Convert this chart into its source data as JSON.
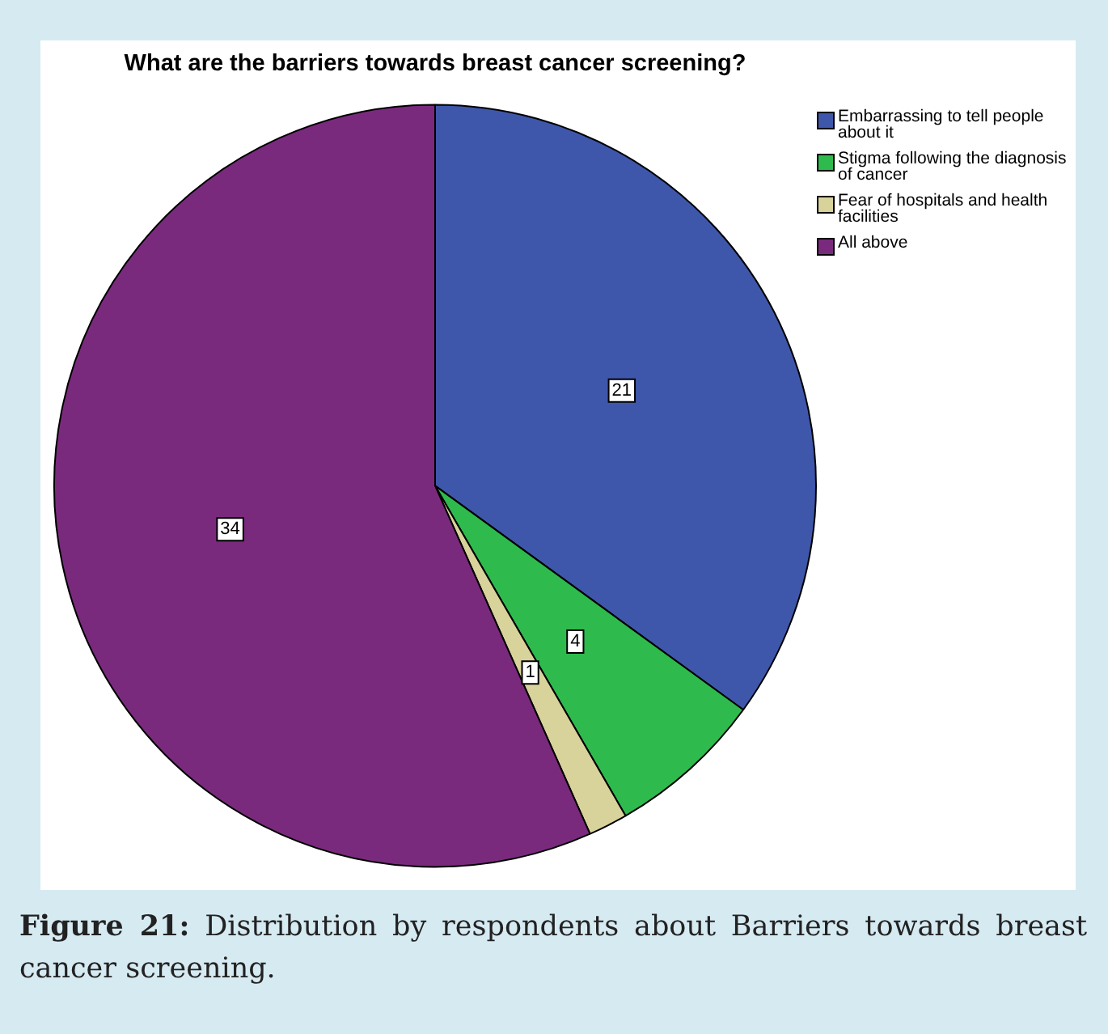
{
  "chart_data": {
    "type": "pie",
    "title": "What are the barriers towards breast cancer screening?",
    "categories": [
      "Embarrassing to tell people about it",
      "Stigma following the diagnosis of cancer",
      "Fear of hospitals and health facilities",
      "All above"
    ],
    "values": [
      21,
      4,
      1,
      34
    ],
    "colors": [
      "#3f57aa",
      "#2fba4d",
      "#d8d29b",
      "#7a2a7d"
    ],
    "data_labels": true,
    "legend": "top right",
    "annotations": [
      "Figure 21: Distribution by respondents about Barriers towards breast cancer screening."
    ]
  }
}
